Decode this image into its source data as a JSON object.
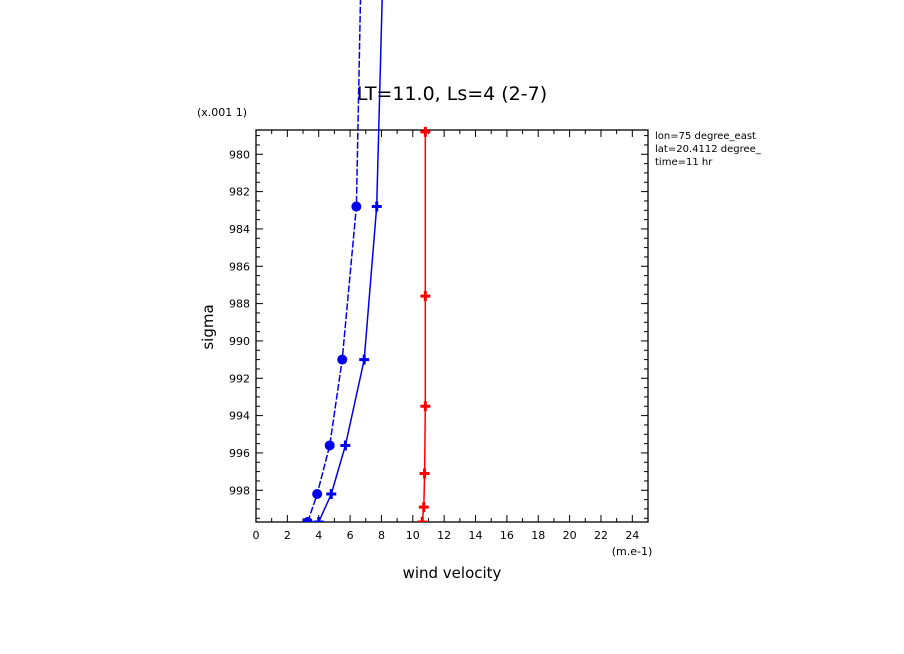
{
  "chart_data": {
    "type": "line",
    "title": "LT=11.0, Ls=4 (2-7)",
    "xlabel": "wind velocity",
    "ylabel": "sigma",
    "x_unit": "(m.e-1)",
    "y_unit": "(x.001 1)",
    "xlim": [
      0,
      25
    ],
    "ylim": [
      999.7,
      978.7
    ],
    "y_inverted": true,
    "grid": false,
    "x_ticks": [
      "0",
      "2",
      "4",
      "6",
      "8",
      "10",
      "12",
      "14",
      "16",
      "18",
      "20",
      "22",
      "24"
    ],
    "y_ticks": [
      "980",
      "982",
      "984",
      "986",
      "988",
      "990",
      "992",
      "994",
      "996",
      "998"
    ],
    "annotations": [
      "lon=75 degree_east",
      "lat=20.4112 degree_",
      "time=11 hr"
    ],
    "series": [
      {
        "color": "#0000ee",
        "marker": "circle",
        "style": "dashed",
        "x": [
          3.3,
          3.9,
          4.7,
          5.5,
          6.4,
          6.7
        ],
        "y": [
          999.7,
          998.2,
          995.6,
          991.0,
          982.8,
          970.0
        ]
      },
      {
        "color": "#0000ee",
        "marker": "plus",
        "style": "solid",
        "x": [
          4.0,
          4.8,
          5.7,
          6.9,
          7.7,
          8.1
        ],
        "y": [
          999.7,
          998.2,
          995.6,
          991.0,
          982.8,
          970.0
        ]
      },
      {
        "color": "#ff0000",
        "marker": "plus",
        "style": "solid",
        "x": [
          10.6,
          10.7,
          10.75,
          10.8,
          10.8,
          10.8
        ],
        "y": [
          999.7,
          998.9,
          997.1,
          993.5,
          987.6,
          978.8
        ]
      }
    ]
  }
}
